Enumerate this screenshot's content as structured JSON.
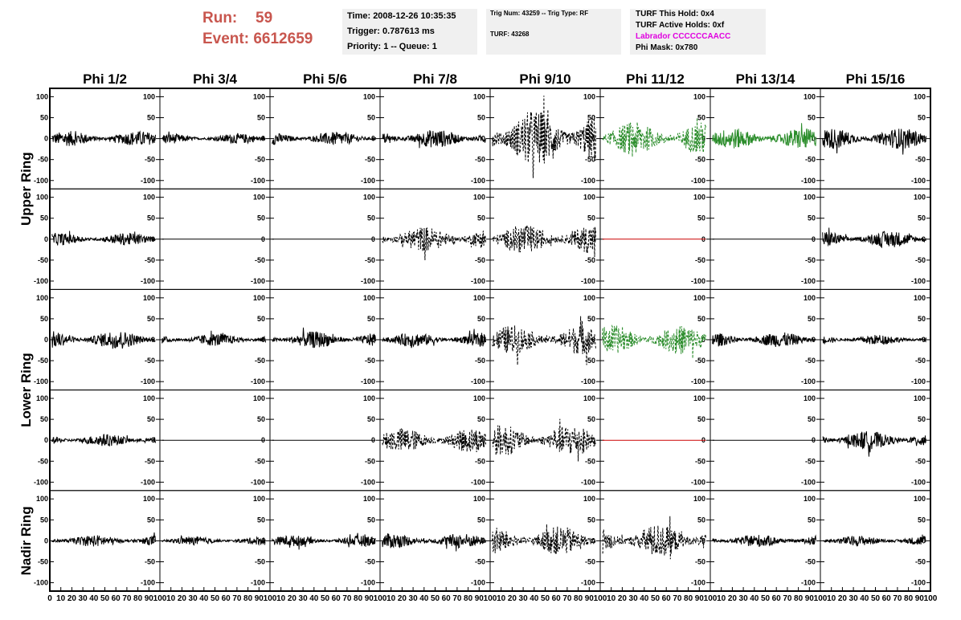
{
  "header": {
    "run_label": "Run:",
    "run_value": "59",
    "event_label": "Event:",
    "event_value": "6612659",
    "time": "Time: 2008-12-26 10:35:35",
    "trigger": "Trigger: 0.787613 ms",
    "priority": "Priority: 1 -- Queue: 1",
    "trig_num": "Trig Num: 43259 -- Trig Type: RF",
    "turf": "TURF: 43268",
    "turf_hold": "TURF This Hold: 0x4",
    "turf_active": "TURF Active Holds: 0xf",
    "labrador": "Labrador CCCCCCAACC",
    "phi_mask": "Phi Mask: 0x780"
  },
  "chart_data": {
    "type": "line",
    "columns": [
      "Phi 1/2",
      "Phi 3/4",
      "Phi 5/6",
      "Phi 7/8",
      "Phi 9/10",
      "Phi 11/12",
      "Phi 13/14",
      "Phi 15/16"
    ],
    "ring_labels": [
      "Upper Ring",
      "Lower Ring",
      "Nadir Ring"
    ],
    "xlim": [
      0,
      100
    ],
    "ylim": [
      -120,
      120
    ],
    "y_ticks": [
      100,
      50,
      0,
      -50,
      -100
    ],
    "x_ticks": [
      "0",
      "10",
      "20",
      "30",
      "40",
      "50",
      "60",
      "70",
      "80",
      "90",
      "100"
    ],
    "styles": {
      "solid_black": "#000000",
      "dashed_black": "#000000",
      "solid_green": "#2a8c2a",
      "dashed_green": "#2a8c2a",
      "flat_red": "#cc0000"
    },
    "panels": [
      [
        {
          "amp": 18,
          "style": "solid_black"
        },
        {
          "amp": 12,
          "style": "solid_black"
        },
        {
          "amp": 16,
          "style": "solid_black"
        },
        {
          "amp": 22,
          "style": "solid_black"
        },
        {
          "amp": 70,
          "style": "dashed_black"
        },
        {
          "amp": 40,
          "style": "dashed_green"
        },
        {
          "amp": 25,
          "style": "solid_green"
        },
        {
          "amp": 25,
          "style": "solid_black"
        }
      ],
      [
        {
          "amp": 15,
          "style": "solid_black"
        },
        {
          "amp": 0,
          "style": "flat_black"
        },
        {
          "amp": 0,
          "style": "flat_black"
        },
        {
          "amp": 30,
          "style": "dashed_black"
        },
        {
          "amp": 35,
          "style": "dashed_black"
        },
        {
          "amp": 0,
          "style": "flat_red"
        },
        {
          "amp": 0,
          "style": "flat_black"
        },
        {
          "amp": 20,
          "style": "solid_black"
        }
      ],
      [
        {
          "amp": 22,
          "style": "solid_black"
        },
        {
          "amp": 15,
          "style": "solid_black"
        },
        {
          "amp": 20,
          "style": "solid_black"
        },
        {
          "amp": 17,
          "style": "solid_black"
        },
        {
          "amp": 35,
          "style": "dashed_black"
        },
        {
          "amp": 35,
          "style": "dashed_green"
        },
        {
          "amp": 18,
          "style": "solid_black"
        },
        {
          "amp": 12,
          "style": "solid_black"
        }
      ],
      [
        {
          "amp": 15,
          "style": "solid_black"
        },
        {
          "amp": 0,
          "style": "flat_black"
        },
        {
          "amp": 0,
          "style": "flat_black"
        },
        {
          "amp": 30,
          "style": "dashed_black"
        },
        {
          "amp": 38,
          "style": "dashed_black"
        },
        {
          "amp": 0,
          "style": "flat_red"
        },
        {
          "amp": 0,
          "style": "flat_black"
        },
        {
          "amp": 22,
          "style": "solid_black"
        }
      ],
      [
        {
          "amp": 14,
          "style": "solid_black"
        },
        {
          "amp": 10,
          "style": "solid_black"
        },
        {
          "amp": 13,
          "style": "solid_black"
        },
        {
          "amp": 18,
          "style": "solid_black"
        },
        {
          "amp": 35,
          "style": "dashed_black"
        },
        {
          "amp": 40,
          "style": "dashed_black"
        },
        {
          "amp": 15,
          "style": "solid_black"
        },
        {
          "amp": 12,
          "style": "solid_black"
        }
      ]
    ]
  }
}
